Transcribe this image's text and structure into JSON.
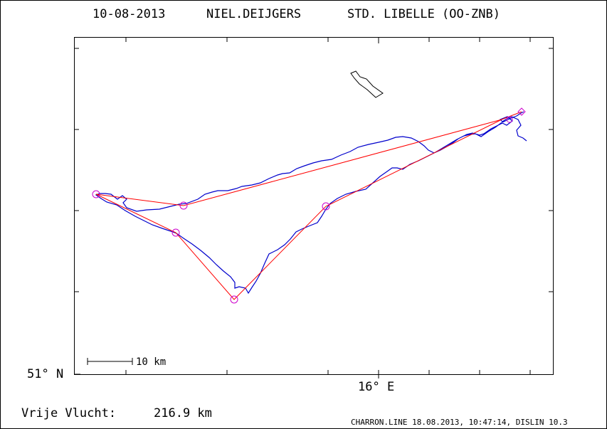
{
  "header": {
    "date": "10-08-2013",
    "pilot": "NIEL.DEIJGERS",
    "glider": "STD. LIBELLE (OO-ZNB)"
  },
  "axes": {
    "lat_label": "51° N",
    "lon_label": "16° E"
  },
  "scale_bar": {
    "label": "10 km"
  },
  "footer": {
    "distance_label": "Vrije Vlucht:",
    "distance_value": "216.9 km",
    "credit": "CHARRON.LINE 18.08.2013, 10:47:14, DISLIN 10.3"
  },
  "colors": {
    "frame": "#000000",
    "track": "#0000cc",
    "task_line": "#ff0000",
    "turnpoint": "#cc00cc",
    "terrain_outline": "#000000"
  }
}
